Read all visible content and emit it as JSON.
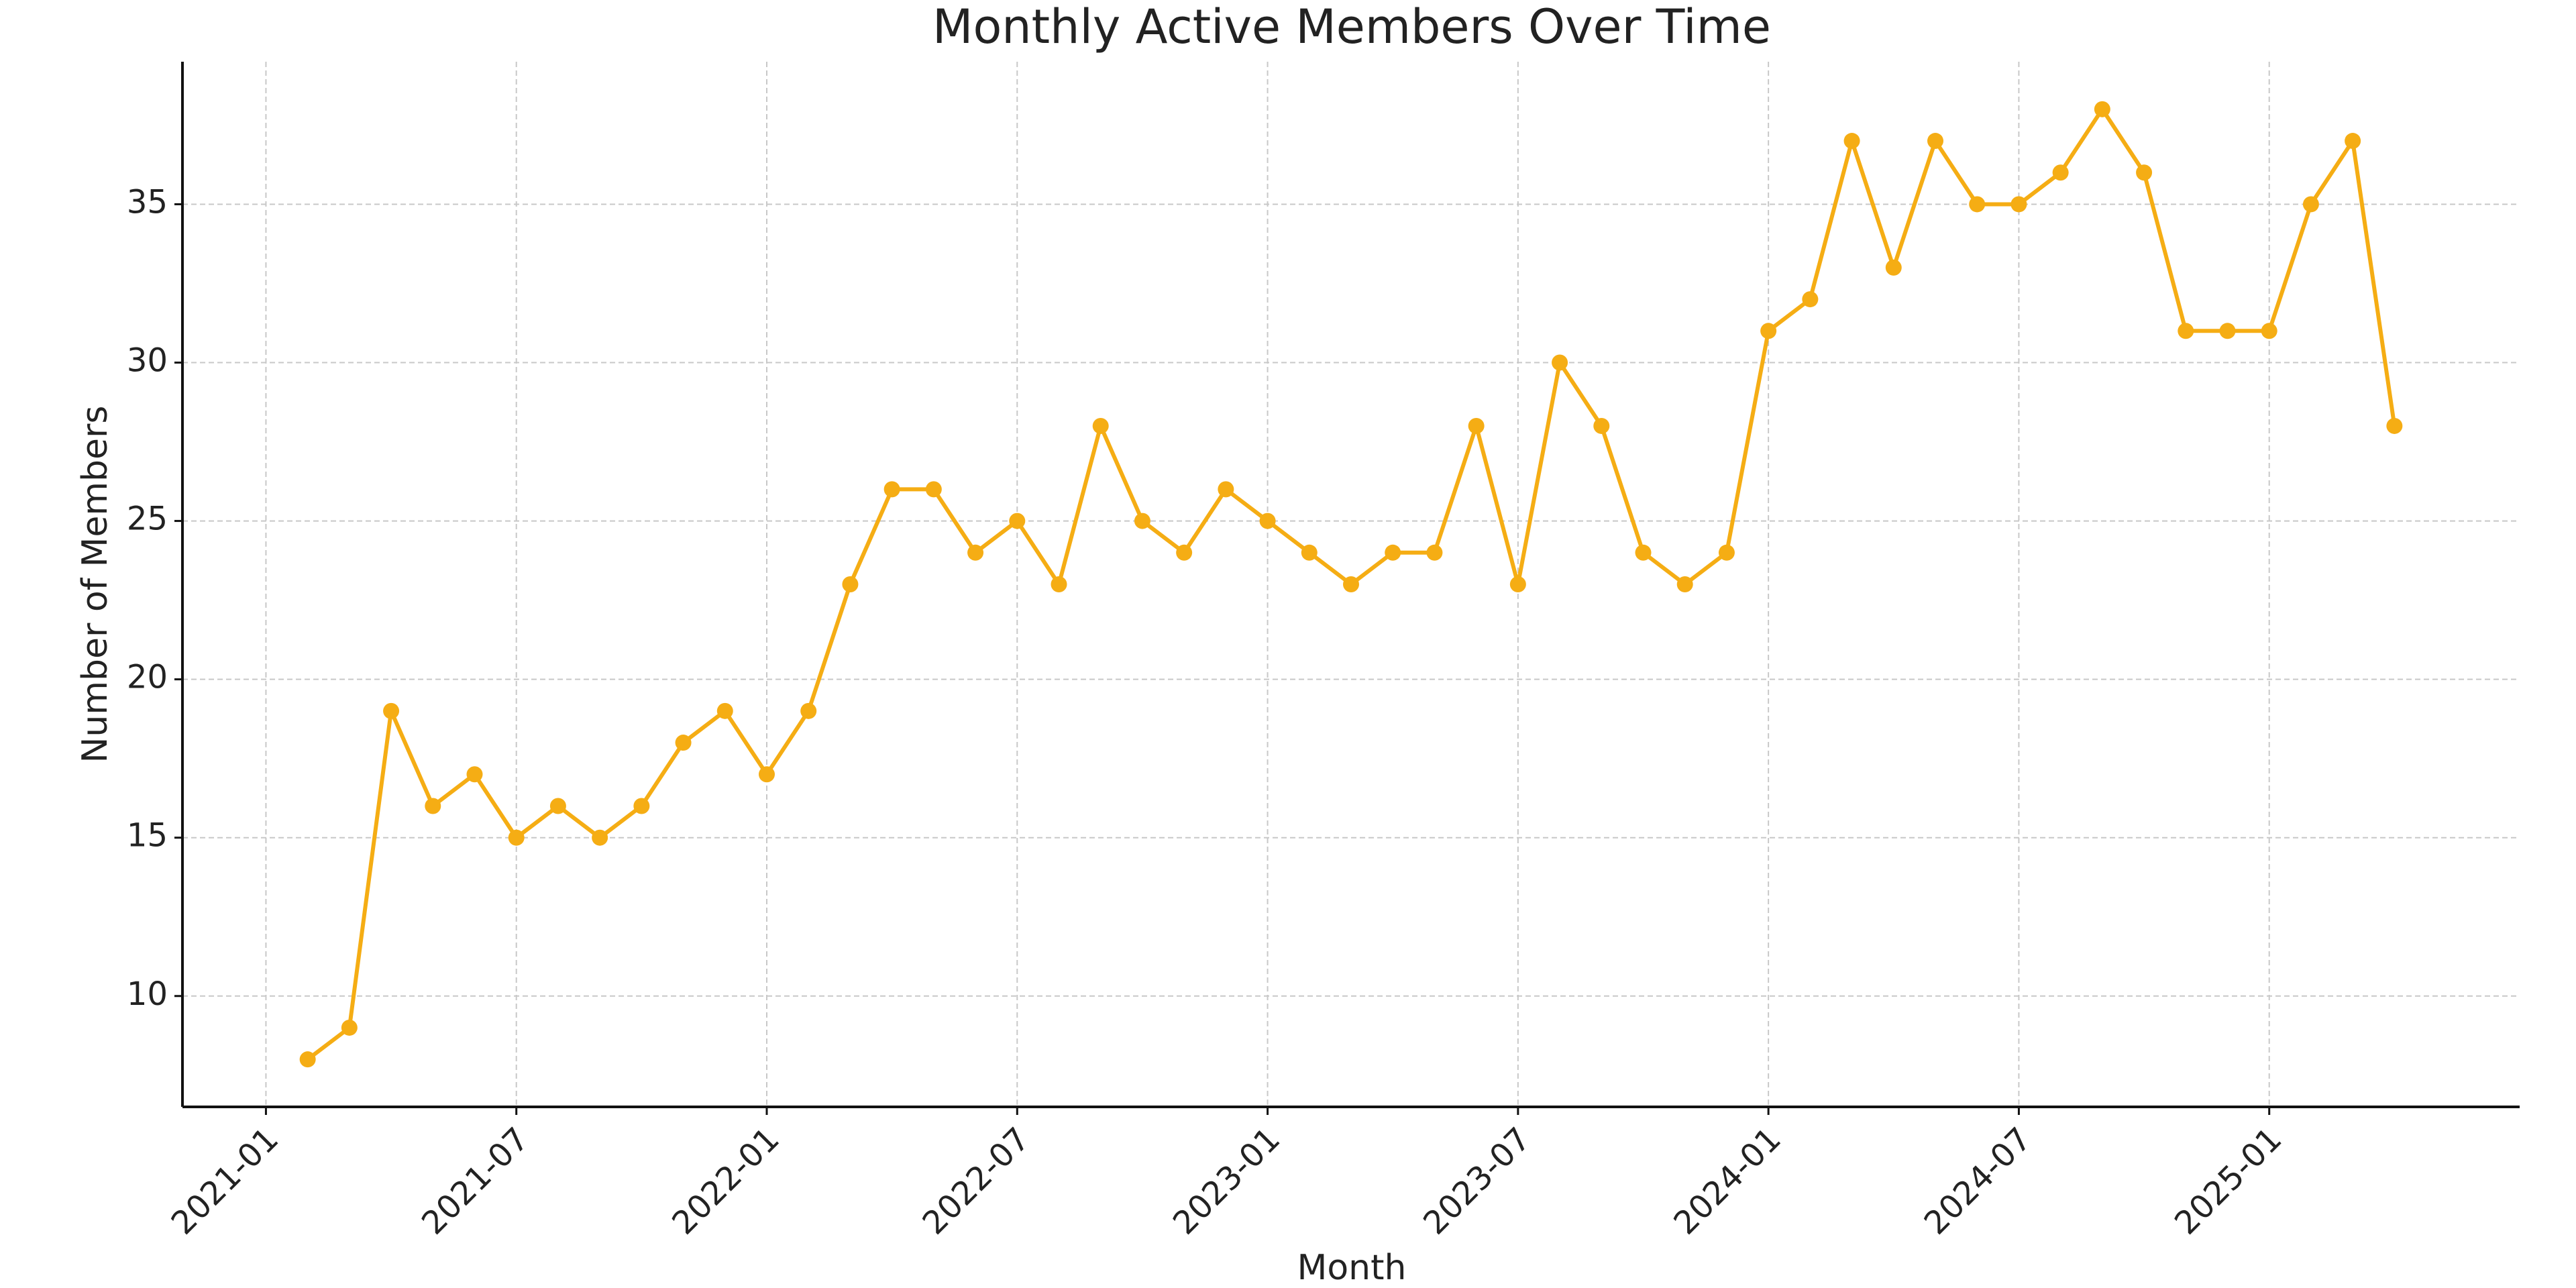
{
  "chart_data": {
    "type": "line",
    "title": "Monthly Active Members Over Time",
    "x_label": "Month",
    "y_label": "Number of Members",
    "x": [
      "2021-02",
      "2021-03",
      "2021-04",
      "2021-05",
      "2021-06",
      "2021-07",
      "2021-08",
      "2021-09",
      "2021-10",
      "2021-11",
      "2021-12",
      "2022-01",
      "2022-02",
      "2022-03",
      "2022-04",
      "2022-05",
      "2022-06",
      "2022-07",
      "2022-08",
      "2022-09",
      "2022-10",
      "2022-11",
      "2022-12",
      "2023-01",
      "2023-02",
      "2023-03",
      "2023-04",
      "2023-05",
      "2023-06",
      "2023-07",
      "2023-08",
      "2023-09",
      "2023-10",
      "2023-11",
      "2023-12",
      "2024-01",
      "2024-02",
      "2024-03",
      "2024-04",
      "2024-05",
      "2024-06",
      "2024-07",
      "2024-08",
      "2024-09",
      "2024-10",
      "2024-11",
      "2024-12",
      "2025-01",
      "2025-02",
      "2025-03",
      "2025-04"
    ],
    "values": [
      8,
      9,
      19,
      16,
      17,
      15,
      16,
      15,
      16,
      18,
      19,
      17,
      19,
      23,
      26,
      26,
      24,
      25,
      23,
      28,
      25,
      24,
      26,
      25,
      24,
      23,
      24,
      24,
      28,
      23,
      30,
      28,
      24,
      23,
      24,
      31,
      32,
      37,
      33,
      37,
      35,
      35,
      36,
      38,
      36,
      31,
      31,
      31,
      35,
      37,
      28
    ],
    "color": "#f5ad14",
    "xlim": [
      "2020-11",
      "2025-07"
    ],
    "xticks": [
      "2021-01",
      "2021-07",
      "2022-01",
      "2022-07",
      "2023-01",
      "2023-07",
      "2024-01",
      "2024-07",
      "2025-01"
    ],
    "ylim": [
      6.5,
      39.5
    ],
    "yticks": [
      10,
      15,
      20,
      25,
      30,
      35
    ],
    "grid": true
  }
}
